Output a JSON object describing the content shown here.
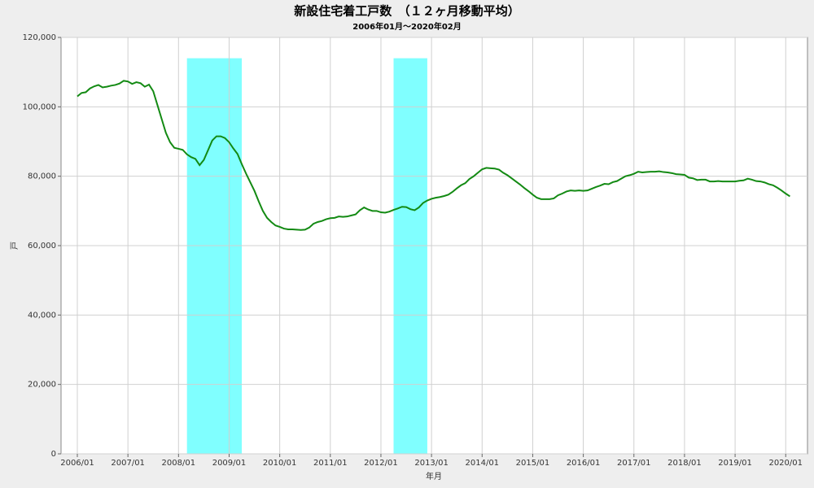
{
  "chart_data": {
    "type": "line",
    "title": "新設住宅着工戸数　（１２ヶ月移動平均）",
    "subtitle": "2006年01月～2020年02月",
    "x_label": "年月",
    "y_label": "戸",
    "categories": [
      "2006/01",
      null,
      null,
      null,
      null,
      null,
      null,
      null,
      null,
      null,
      null,
      null,
      "2007/01",
      null,
      null,
      null,
      null,
      null,
      null,
      null,
      null,
      null,
      null,
      null,
      "2008/01",
      null,
      null,
      null,
      null,
      null,
      null,
      null,
      null,
      null,
      null,
      null,
      "2009/01",
      null,
      null,
      null,
      null,
      null,
      null,
      null,
      null,
      null,
      null,
      null,
      "2010/01",
      null,
      null,
      null,
      null,
      null,
      null,
      null,
      null,
      null,
      null,
      null,
      "2011/01",
      null,
      null,
      null,
      null,
      null,
      null,
      null,
      null,
      null,
      null,
      null,
      "2012/01",
      null,
      null,
      null,
      null,
      null,
      null,
      null,
      null,
      null,
      null,
      null,
      "2013/01",
      null,
      null,
      null,
      null,
      null,
      null,
      null,
      null,
      null,
      null,
      null,
      "2014/01",
      null,
      null,
      null,
      null,
      null,
      null,
      null,
      null,
      null,
      null,
      null,
      "2015/01",
      null,
      null,
      null,
      null,
      null,
      null,
      null,
      null,
      null,
      null,
      null,
      "2016/01",
      null,
      null,
      null,
      null,
      null,
      null,
      null,
      null,
      null,
      null,
      null,
      "2017/01",
      null,
      null,
      null,
      null,
      null,
      null,
      null,
      null,
      null,
      null,
      null,
      "2018/01",
      null,
      null,
      null,
      null,
      null,
      null,
      null,
      null,
      null,
      null,
      null,
      "2019/01",
      null,
      null,
      null,
      null,
      null,
      null,
      null,
      null,
      null,
      null,
      null,
      "2020/01",
      null
    ],
    "series": [
      {
        "color": "#138a13",
        "values": [
          103000,
          104000,
          104200,
          105300,
          105900,
          106300,
          105600,
          105800,
          106100,
          106300,
          106700,
          107500,
          107300,
          106600,
          107100,
          106800,
          105800,
          106400,
          104500,
          100500,
          96500,
          92500,
          89800,
          88200,
          87900,
          87600,
          86300,
          85500,
          85000,
          83200,
          84700,
          87500,
          90300,
          91500,
          91500,
          91000,
          89800,
          88000,
          86400,
          83500,
          80800,
          78300,
          75800,
          72800,
          70000,
          68000,
          66800,
          65800,
          65400,
          64900,
          64700,
          64700,
          64600,
          64500,
          64600,
          65200,
          66300,
          66800,
          67100,
          67600,
          67900,
          68000,
          68400,
          68300,
          68400,
          68700,
          69000,
          70200,
          71000,
          70400,
          70000,
          70000,
          69600,
          69500,
          69800,
          70300,
          70700,
          71200,
          71100,
          70500,
          70200,
          71000,
          72300,
          73000,
          73500,
          73800,
          74000,
          74300,
          74700,
          75500,
          76500,
          77400,
          78000,
          79200,
          80000,
          81000,
          82000,
          82400,
          82300,
          82200,
          81900,
          81000,
          80300,
          79400,
          78500,
          77600,
          76600,
          75700,
          74700,
          73800,
          73400,
          73400,
          73400,
          73600,
          74500,
          75000,
          75600,
          75900,
          75800,
          75900,
          75800,
          75900,
          76400,
          76900,
          77300,
          77800,
          77700,
          78300,
          78600,
          79300,
          80000,
          80300,
          80700,
          81300,
          81100,
          81200,
          81300,
          81300,
          81400,
          81200,
          81100,
          80900,
          80600,
          80500,
          80400,
          79600,
          79400,
          78900,
          79000,
          79000,
          78500,
          78500,
          78600,
          78500,
          78500,
          78500,
          78500,
          78700,
          78800,
          79300,
          79000,
          78600,
          78500,
          78200,
          77700,
          77400,
          76700,
          75900,
          75000,
          74200
        ]
      }
    ],
    "ylim": [
      0,
      120000
    ],
    "yticks": [
      0,
      {
        "value": 20000,
        "label": "20,000"
      },
      {
        "value": 40000,
        "label": "40,000"
      },
      {
        "value": 60000,
        "label": "60,000"
      },
      {
        "value": 80000,
        "label": "80,000"
      },
      {
        "value": 100000,
        "label": "100,000"
      },
      {
        "value": 120000,
        "label": "120,000"
      }
    ],
    "grid": true,
    "bands": [
      {
        "from": 26,
        "to": 39
      },
      {
        "from": 75,
        "to": 83
      }
    ],
    "band_top": 114000,
    "band_color": "#80ffff"
  }
}
